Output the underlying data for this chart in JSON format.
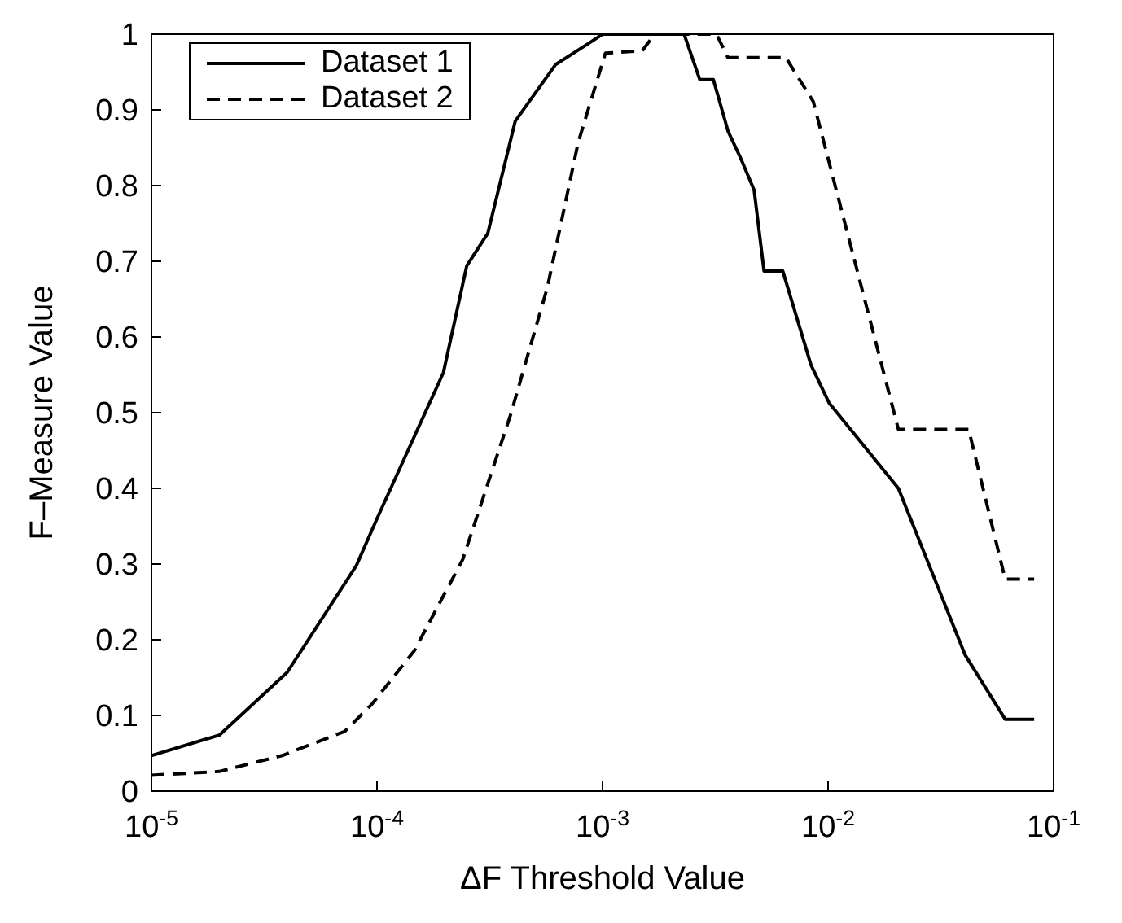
{
  "chart_data": {
    "type": "line",
    "xlabel": "ΔF Threshold Value",
    "ylabel": "F–Measure Value",
    "log": "x",
    "grid": false,
    "legend": "top left",
    "xlim": [
      1e-05,
      0.1
    ],
    "ylim": [
      0,
      1
    ],
    "xticks": [
      {
        "value": 1e-05,
        "label": "10$^{-5}$"
      },
      {
        "value": 0.0001,
        "label": "10$^{-4}$"
      },
      {
        "value": 0.001,
        "label": "10$^{-3}$"
      },
      {
        "value": 0.01,
        "label": "10$^{-2}$"
      },
      {
        "value": 0.1,
        "label": "10$^{-1}$"
      }
    ],
    "yticks": [
      0,
      0.1,
      0.2,
      0.3,
      0.4,
      0.5,
      0.6,
      0.7,
      0.8,
      0.9,
      1
    ],
    "series": [
      {
        "name": "Dataset 1",
        "color": "#000000",
        "line_style": "solid",
        "x": [
          1e-05,
          2e-05,
          4e-05,
          8.1e-05,
          0.0001,
          0.000197,
          0.00025,
          0.00031,
          0.00041,
          0.00062,
          0.00087,
          0.001,
          0.0023,
          0.0027,
          0.0031,
          0.0036,
          0.0041,
          0.0047,
          0.0052,
          0.0063,
          0.0084,
          0.0101,
          0.0205,
          0.0405,
          0.061,
          0.082
        ],
        "values": [
          0.047,
          0.074,
          0.157,
          0.298,
          0.36,
          0.553,
          0.694,
          0.737,
          0.885,
          0.96,
          0.988,
          1,
          1,
          0.94,
          0.94,
          0.872,
          0.836,
          0.794,
          0.687,
          0.687,
          0.563,
          0.513,
          0.4,
          0.18,
          0.095,
          0.095
        ]
      },
      {
        "name": "Dataset 2",
        "color": "#000000",
        "line_style": "dashed",
        "x": [
          1e-05,
          2e-05,
          3.8e-05,
          7.2e-05,
          9.5e-05,
          0.000146,
          0.00024,
          0.00039,
          0.00057,
          0.00078,
          0.00103,
          0.0015,
          0.0017,
          0.0032,
          0.0036,
          0.0065,
          0.0086,
          0.0205,
          0.042,
          0.061,
          0.082
        ],
        "values": [
          0.021,
          0.026,
          0.047,
          0.079,
          0.115,
          0.185,
          0.306,
          0.496,
          0.666,
          0.857,
          0.975,
          0.978,
          1,
          1,
          0.969,
          0.969,
          0.911,
          0.478,
          0.478,
          0.28,
          0.28
        ]
      }
    ]
  }
}
